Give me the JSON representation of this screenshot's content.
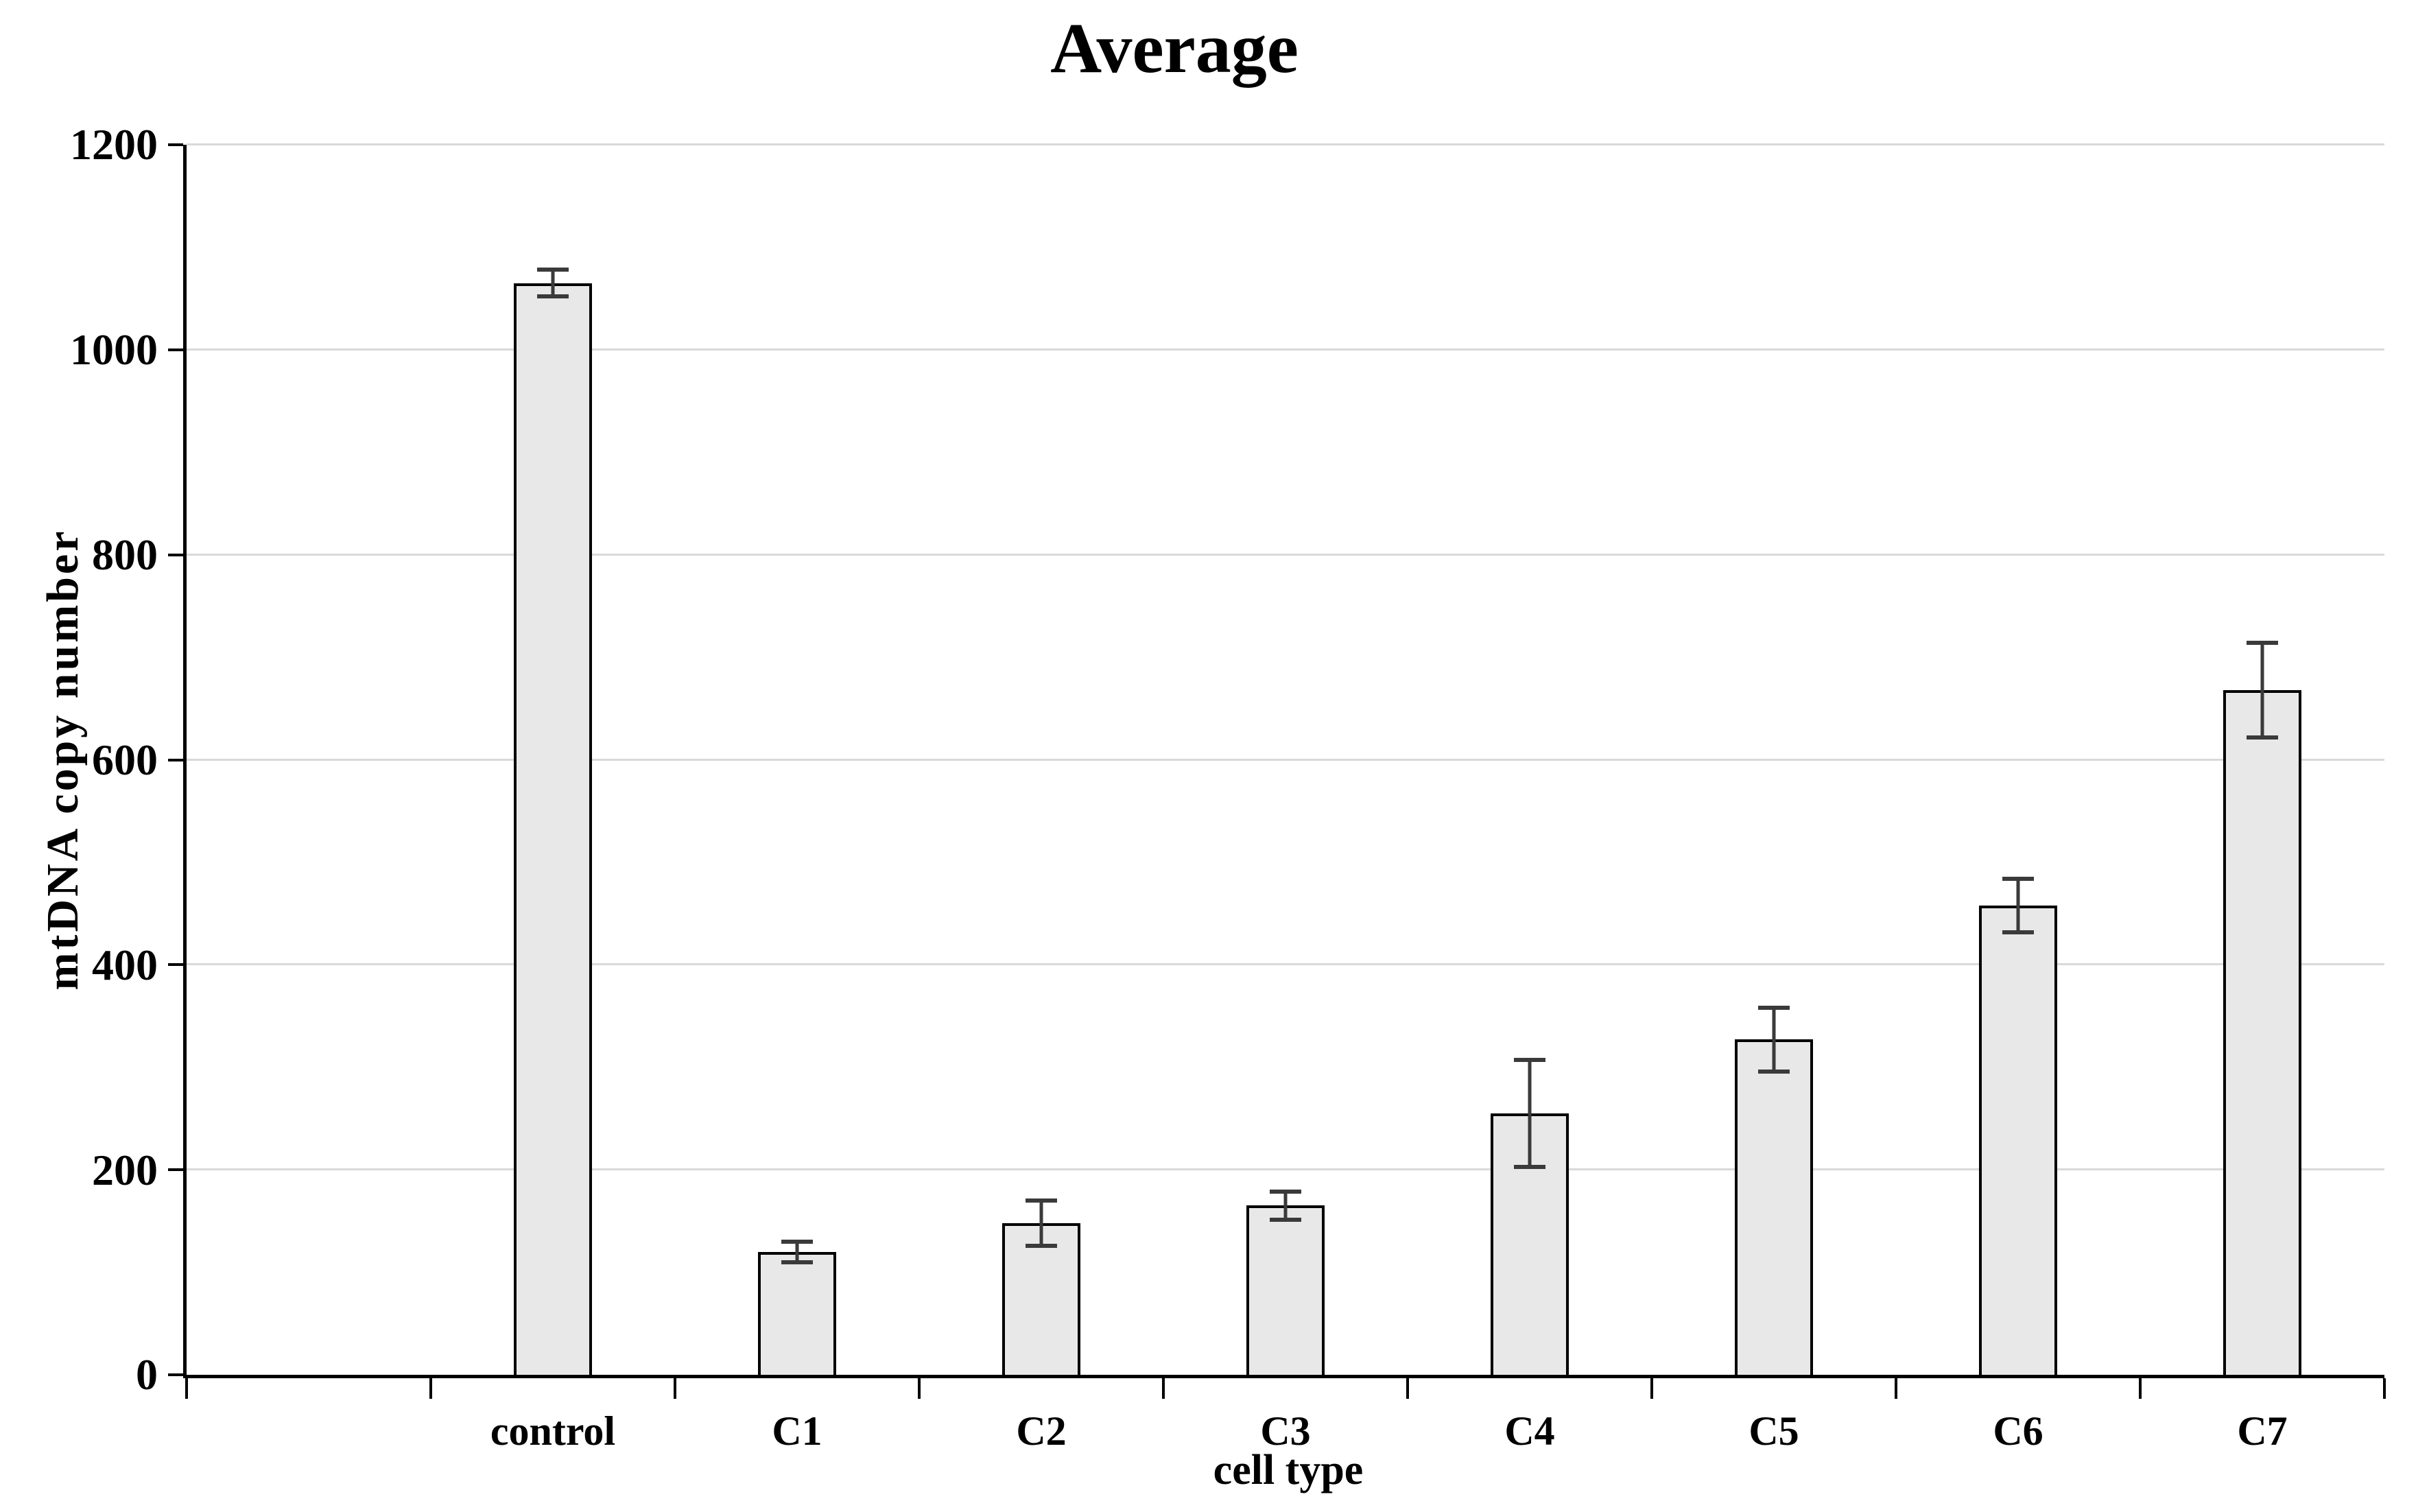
{
  "chart_data": {
    "type": "bar",
    "title": "Average",
    "xlabel": "cell type",
    "ylabel": "mtDNA copy number",
    "categories": [
      "control",
      "C1",
      "C2",
      "C3",
      "C4",
      "C5",
      "C6",
      "C7"
    ],
    "values": [
      1065,
      120,
      148,
      165,
      255,
      327,
      458,
      668
    ],
    "errors": [
      13,
      10,
      22,
      14,
      52,
      31,
      26,
      46
    ],
    "ylim": [
      0,
      1200
    ],
    "yticks": [
      0,
      200,
      400,
      600,
      800,
      1000,
      1200
    ],
    "ytick_labels": [
      "0",
      "200",
      "400",
      "600",
      "800",
      "1000",
      "1200"
    ],
    "grid": "horizontal",
    "legend_position": "none",
    "leading_empty_slot": true
  },
  "colors": {
    "background": "#ffffff",
    "text": "#000000",
    "axis": "#000000",
    "gridline": "#d9d9d9",
    "bar_fill": "#e8e8e8",
    "bar_border": "#000000",
    "error_bar": "#3a3a3a"
  }
}
